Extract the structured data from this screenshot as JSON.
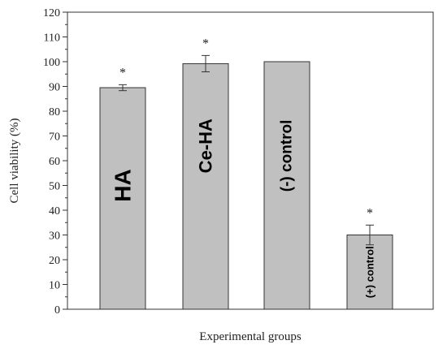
{
  "chart_data": {
    "type": "bar",
    "title": "",
    "xlabel": "Experimental groups",
    "ylabel": "Cell viability (%)",
    "ylim": [
      0,
      120
    ],
    "yticks": [
      0,
      10,
      20,
      30,
      40,
      50,
      60,
      70,
      80,
      90,
      100,
      110,
      120
    ],
    "categories": [
      "HA",
      "Ce-HA",
      "(-) control",
      "(+) control"
    ],
    "values": [
      89.5,
      99.2,
      100,
      30
    ],
    "errors": [
      1.2,
      3.3,
      0,
      4.0
    ],
    "significance": [
      "*",
      "*",
      "",
      "*"
    ],
    "grid": false,
    "colors": {
      "bar_fill": "#c0c0c0",
      "bar_stroke": "#333333",
      "axis": "#333333"
    }
  }
}
